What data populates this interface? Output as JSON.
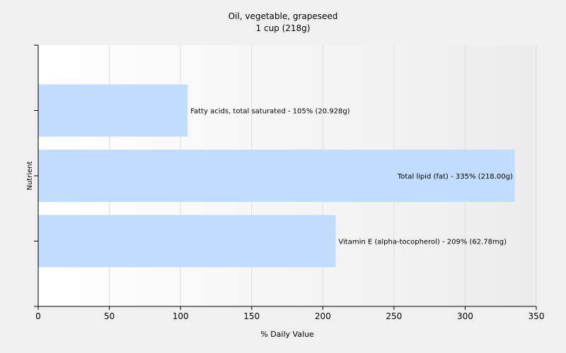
{
  "chart_data": {
    "type": "bar",
    "orientation": "horizontal",
    "title": "Oil, vegetable, grapeseed",
    "subtitle": "1 cup (218g)",
    "xlabel": "% Daily Value",
    "ylabel": "Nutrient",
    "xlim": [
      0,
      350
    ],
    "xticks": [
      0,
      50,
      100,
      150,
      200,
      250,
      300,
      350
    ],
    "grid": true,
    "legend": "none",
    "bar_color": "#c2dcff",
    "bars": [
      {
        "label": "Fatty acids, total saturated - 105% (20.928g)",
        "value": 105
      },
      {
        "label": "Total lipid (fat) - 335% (218.00g)",
        "value": 335
      },
      {
        "label": "Vitamin E (alpha-tocopherol) - 209% (62.78mg)",
        "value": 209
      }
    ]
  }
}
